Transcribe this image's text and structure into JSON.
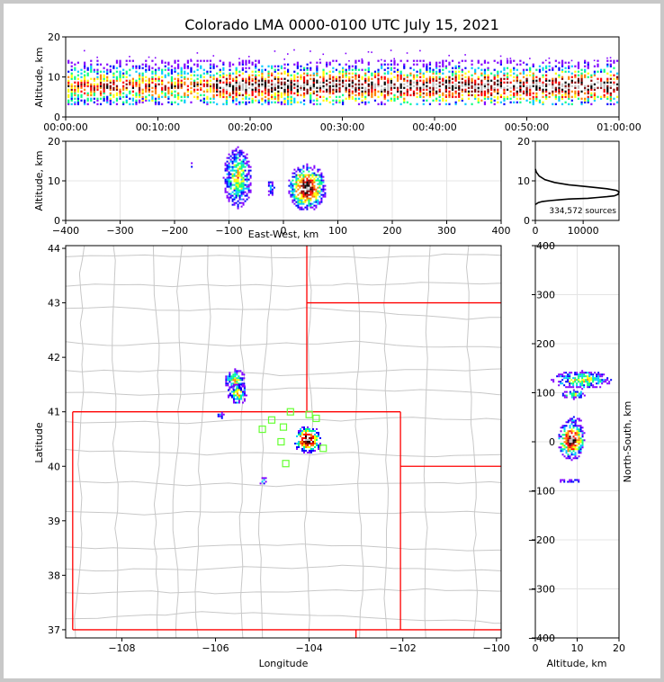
{
  "title": "Colorado LMA 0000-0100 UTC July 15, 2021",
  "source_count_label": "334,572 sources",
  "colors": {
    "density": [
      "#8000ff",
      "#0000ff",
      "#00c8ff",
      "#00ff80",
      "#ffff00",
      "#ff8000",
      "#ff0000",
      "#800000",
      "#000000",
      "#c0c0c0"
    ],
    "boundary": "#ff0000",
    "county": "#c8c8c8",
    "station": "#66ff33"
  },
  "chart_data": [
    {
      "id": "alt-time",
      "type": "heatmap",
      "title": "",
      "xlabel": "",
      "ylabel": "Altitude, km",
      "xlim": [
        0,
        60
      ],
      "ylim": [
        0,
        20
      ],
      "x_ticks": [
        "00:00:00",
        "00:10:00",
        "00:20:00",
        "00:30:00",
        "00:40:00",
        "00:50:00",
        "01:00:00"
      ],
      "y_ticks": [
        0,
        10,
        20
      ]
    },
    {
      "id": "alt-ew",
      "type": "heatmap",
      "xlabel": "East-West, km",
      "ylabel": "Altitude, km",
      "xlim": [
        -400,
        400
      ],
      "ylim": [
        0,
        20
      ],
      "x_ticks": [
        -400,
        -300,
        -200,
        -100,
        0,
        100,
        200,
        300,
        400
      ],
      "y_ticks": [
        0,
        10,
        20
      ]
    },
    {
      "id": "alt-histogram",
      "type": "line",
      "xlim": [
        0,
        17500
      ],
      "ylim": [
        0,
        20
      ],
      "x_ticks": [
        0,
        10000
      ],
      "y_ticks": [
        0,
        10,
        20
      ],
      "x": [
        0,
        600,
        1500,
        3000,
        5000,
        7000,
        9000,
        11000,
        13000,
        15000,
        16500,
        17300,
        17500,
        17000,
        15000,
        11000,
        7000,
        4000,
        2000,
        800,
        200,
        0
      ],
      "y": [
        4,
        4.5,
        4.8,
        5.0,
        5.2,
        5.4,
        5.5,
        5.6,
        5.8,
        6.0,
        6.2,
        6.6,
        7.2,
        7.6,
        8.0,
        8.5,
        9.0,
        9.6,
        10.3,
        11.2,
        12.2,
        13
      ]
    },
    {
      "id": "plan-view",
      "type": "scatter",
      "xlabel": "Longitude",
      "ylabel": "Latitude",
      "xlim": [
        -109.2,
        -99.9
      ],
      "ylim": [
        36.85,
        44.05
      ],
      "x_ticks": [
        -108,
        -106,
        -104,
        -102,
        -100
      ],
      "y_ticks": [
        37,
        38,
        39,
        40,
        41,
        42,
        43,
        44
      ],
      "stations": [
        {
          "lon": -104.4,
          "lat": 41.0
        },
        {
          "lon": -104.0,
          "lat": 40.95
        },
        {
          "lon": -103.85,
          "lat": 40.88
        },
        {
          "lon": -104.8,
          "lat": 40.85
        },
        {
          "lon": -104.55,
          "lat": 40.72
        },
        {
          "lon": -105.0,
          "lat": 40.68
        },
        {
          "lon": -104.6,
          "lat": 40.45
        },
        {
          "lon": -103.7,
          "lat": 40.33
        },
        {
          "lon": -104.5,
          "lat": 40.05
        }
      ],
      "source_clusters": [
        {
          "lon": -104.05,
          "lat": 40.5,
          "peak": "high"
        },
        {
          "lon": -105.6,
          "lat": 41.6,
          "peak": "medium"
        },
        {
          "lon": -105.55,
          "lat": 41.35,
          "peak": "medium"
        },
        {
          "lon": -105.0,
          "lat": 39.75,
          "peak": "low"
        },
        {
          "lon": -105.9,
          "lat": 40.95,
          "peak": "low"
        }
      ]
    },
    {
      "id": "ns-alt",
      "type": "heatmap",
      "xlabel": "Altitude, km",
      "ylabel": "North-South, km",
      "xlim": [
        0,
        20
      ],
      "ylim": [
        -400,
        400
      ],
      "x_ticks": [
        0,
        10,
        20
      ],
      "y_ticks": [
        -400,
        -300,
        -200,
        -100,
        0,
        100,
        200,
        300,
        400
      ]
    }
  ]
}
